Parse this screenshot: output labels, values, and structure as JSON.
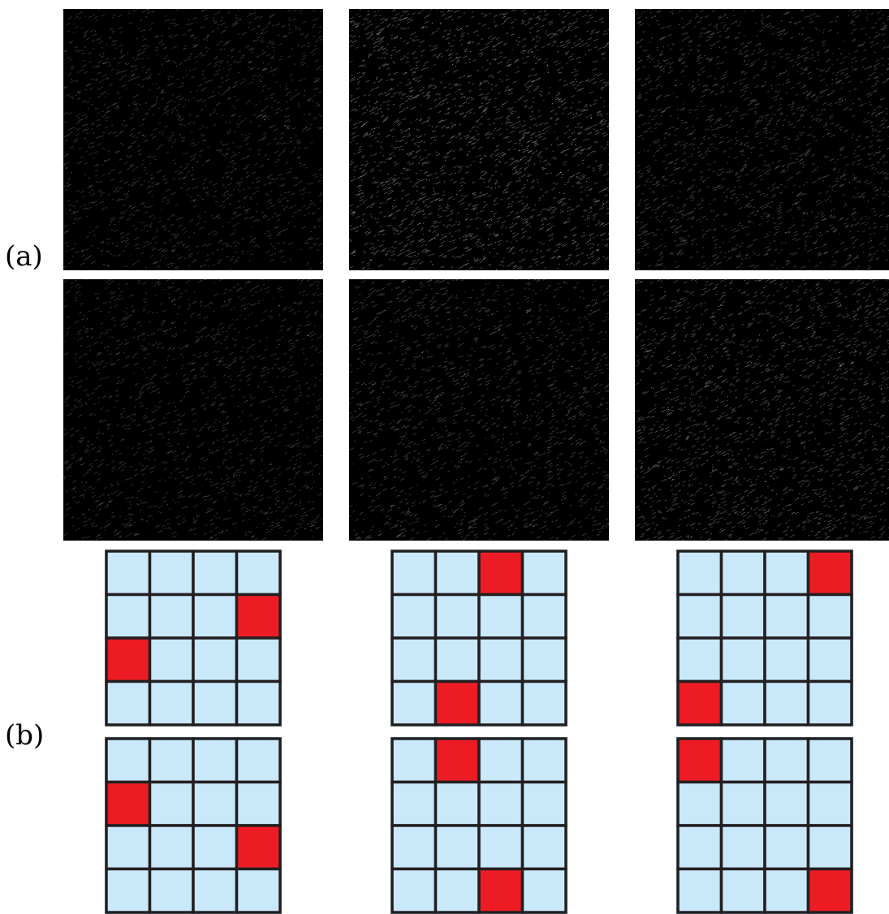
{
  "labels": {
    "a": "(a)",
    "b": "(b)"
  },
  "colors": {
    "noise_background": "#000000",
    "cell_fill": "#c9e8fa",
    "cell_active": "#ed1c24",
    "grid_line": "#231f20",
    "grid_outline": "#9ed3f0"
  },
  "noise_panels": [
    {
      "row": 0,
      "col": 0,
      "brightness": 0.25
    },
    {
      "row": 0,
      "col": 1,
      "brightness": 0.55
    },
    {
      "row": 0,
      "col": 2,
      "brightness": 0.35
    },
    {
      "row": 1,
      "col": 0,
      "brightness": 0.22
    },
    {
      "row": 1,
      "col": 1,
      "brightness": 0.3
    },
    {
      "row": 1,
      "col": 2,
      "brightness": 0.45
    }
  ],
  "grids": [
    {
      "row": 0,
      "col": 0,
      "size": 4,
      "active": [
        [
          1,
          3
        ],
        [
          2,
          0
        ]
      ]
    },
    {
      "row": 0,
      "col": 1,
      "size": 4,
      "active": [
        [
          0,
          2
        ],
        [
          3,
          1
        ]
      ]
    },
    {
      "row": 0,
      "col": 2,
      "size": 4,
      "active": [
        [
          0,
          3
        ],
        [
          3,
          0
        ]
      ]
    },
    {
      "row": 1,
      "col": 0,
      "size": 4,
      "active": [
        [
          1,
          0
        ],
        [
          2,
          3
        ]
      ]
    },
    {
      "row": 1,
      "col": 1,
      "size": 4,
      "active": [
        [
          0,
          1
        ],
        [
          3,
          2
        ]
      ]
    },
    {
      "row": 1,
      "col": 2,
      "size": 4,
      "active": [
        [
          0,
          0
        ],
        [
          3,
          3
        ]
      ]
    }
  ]
}
